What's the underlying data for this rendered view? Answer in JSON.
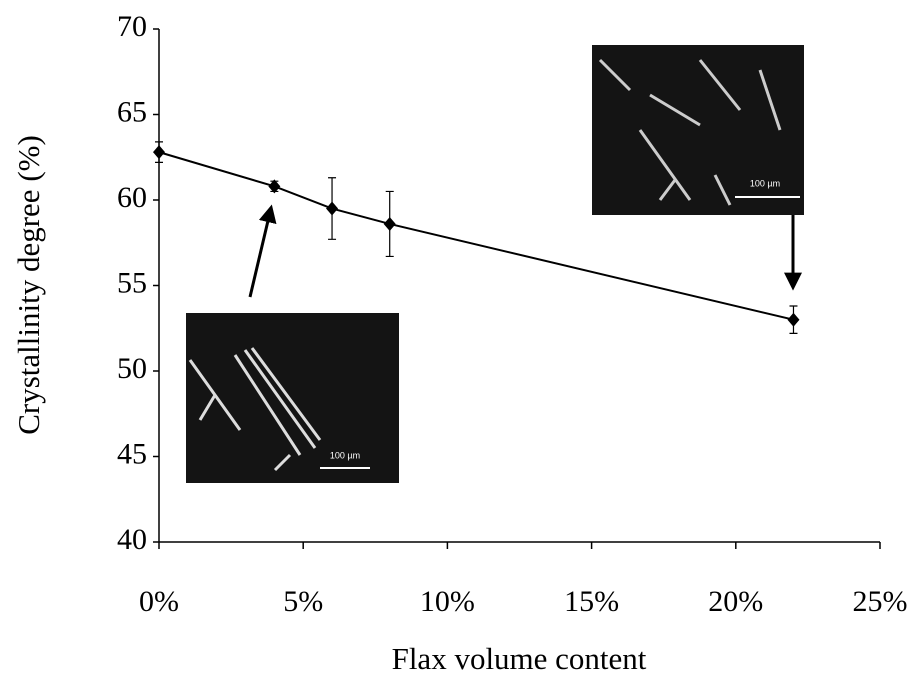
{
  "chart_data": {
    "type": "line",
    "x_label": "Flax volume content",
    "y_label": "Crystallinity degree (%)",
    "x": [
      0,
      4,
      6,
      8,
      22
    ],
    "values": [
      62.8,
      60.8,
      59.5,
      58.6,
      53.0
    ],
    "errors": [
      0.6,
      0.3,
      1.8,
      1.9,
      0.8
    ],
    "color": "#000000",
    "xlim": [
      0,
      25
    ],
    "xticks": [
      {
        "value": 0,
        "label": "0%"
      },
      {
        "value": 5,
        "label": "5%"
      },
      {
        "value": 10,
        "label": "10%"
      },
      {
        "value": 15,
        "label": "15%"
      },
      {
        "value": 20,
        "label": "20%"
      },
      {
        "value": 25,
        "label": "25%"
      }
    ],
    "ylim": [
      40,
      70
    ],
    "yticks": [
      40,
      45,
      50,
      55,
      60,
      65,
      70
    ],
    "grid": false,
    "annotations": [
      "100 µm",
      "100 µm"
    ]
  }
}
